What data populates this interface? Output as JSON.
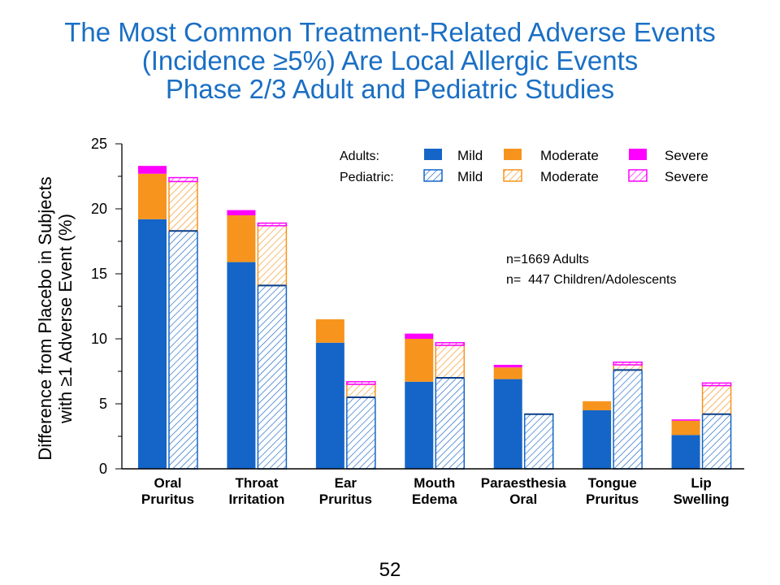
{
  "title": {
    "line1": "The Most Common Treatment-Related Adverse Events",
    "line2": "(Incidence ≥5%) Are Local Allergic Events",
    "line3": "Phase 2/3 Adult and Pediatric Studies"
  },
  "page_number": "52",
  "colors": {
    "mild": "#1565c8",
    "moderate": "#f7941d",
    "severe": "#ff00ff"
  },
  "chart_data": {
    "type": "bar",
    "stacked": true,
    "title": "",
    "ylabel_line1": "Difference from Placebo in Subjects",
    "ylabel_line2": "with ≥1 Adverse Event (%)",
    "ylim": [
      0,
      25
    ],
    "yticks": [
      0,
      5,
      10,
      15,
      20,
      25
    ],
    "grid": false,
    "legend_position": "top-right",
    "categories": [
      [
        "Oral",
        "Pruritus"
      ],
      [
        "Throat",
        "Irritation"
      ],
      [
        "Ear",
        "Pruritus"
      ],
      [
        "Mouth",
        "Edema"
      ],
      [
        "Paraesthesia",
        "Oral"
      ],
      [
        "Tongue",
        "Pruritus"
      ],
      [
        "Lip",
        "Swelling"
      ]
    ],
    "legend": {
      "adults_label": "Adults:",
      "pediatric_label": "Pediatric:",
      "mild": "Mild",
      "moderate": "Moderate",
      "severe": "Severe"
    },
    "annotation": [
      "n=1669 Adults",
      "n=  447 Children/Adolescents"
    ],
    "adults": {
      "mild": [
        19.2,
        15.9,
        9.7,
        6.7,
        6.9,
        4.5,
        2.6
      ],
      "moderate": [
        3.5,
        3.6,
        1.8,
        3.3,
        0.9,
        0.7,
        1.1
      ],
      "severe": [
        0.6,
        0.4,
        0.0,
        0.4,
        0.2,
        0.0,
        0.1
      ]
    },
    "pediatric": {
      "mild": [
        18.3,
        14.1,
        5.5,
        7.0,
        4.2,
        7.6,
        4.2
      ],
      "moderate": [
        3.8,
        4.6,
        1.0,
        2.5,
        0.0,
        0.4,
        2.2
      ],
      "severe": [
        0.3,
        0.2,
        0.2,
        0.2,
        0.0,
        0.2,
        0.2
      ]
    }
  }
}
